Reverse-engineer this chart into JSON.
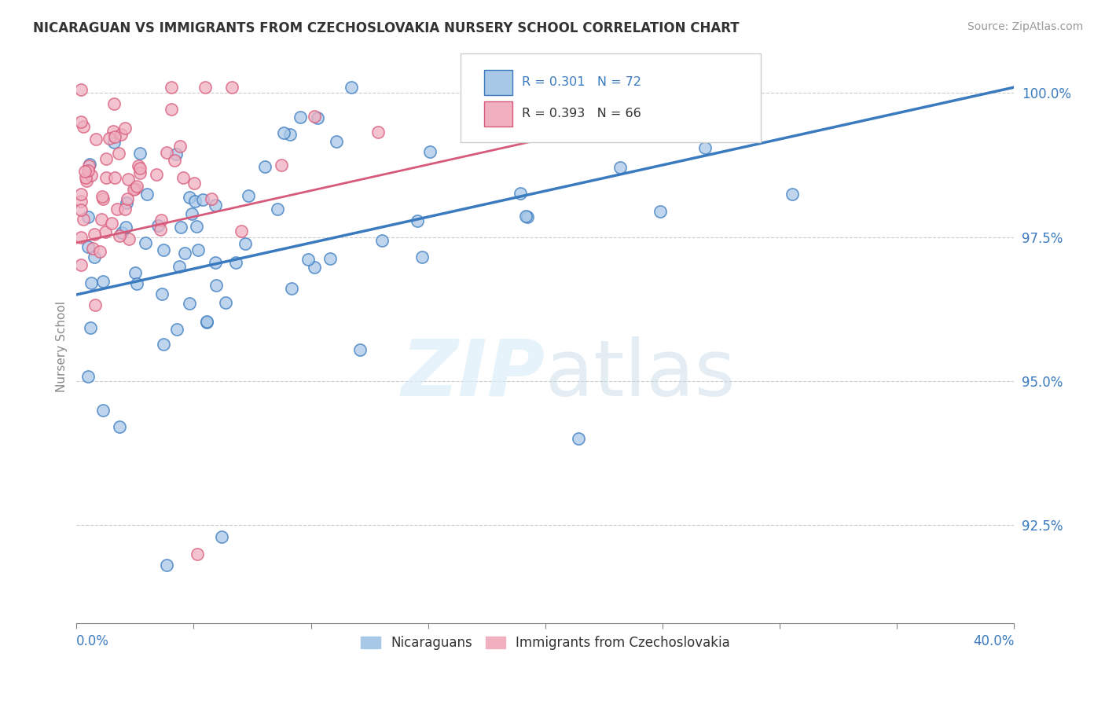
{
  "title": "NICARAGUAN VS IMMIGRANTS FROM CZECHOSLOVAKIA NURSERY SCHOOL CORRELATION CHART",
  "source": "Source: ZipAtlas.com",
  "ylabel": "Nursery School",
  "legend_label1": "Nicaraguans",
  "legend_label2": "Immigrants from Czechoslovakia",
  "r1": 0.301,
  "n1": 72,
  "r2": 0.393,
  "n2": 66,
  "blue_color": "#a8c8e8",
  "pink_color": "#f0b0c0",
  "blue_line_color": "#3a7abf",
  "pink_line_color": "#d85a7a",
  "watermark_color": "#ddeef8",
  "xlim": [
    0.0,
    0.4
  ],
  "ylim": [
    0.908,
    1.004
  ],
  "yticks": [
    0.925,
    0.95,
    0.975,
    1.0
  ],
  "ytick_labels": [
    "92.5%",
    "95.0%",
    "97.5%",
    "100.0%"
  ],
  "blue_line_x": [
    0.0,
    0.4
  ],
  "blue_line_y": [
    0.965,
    1.001
  ],
  "pink_line_x": [
    0.0,
    0.265
  ],
  "pink_line_y": [
    0.974,
    0.998
  ]
}
